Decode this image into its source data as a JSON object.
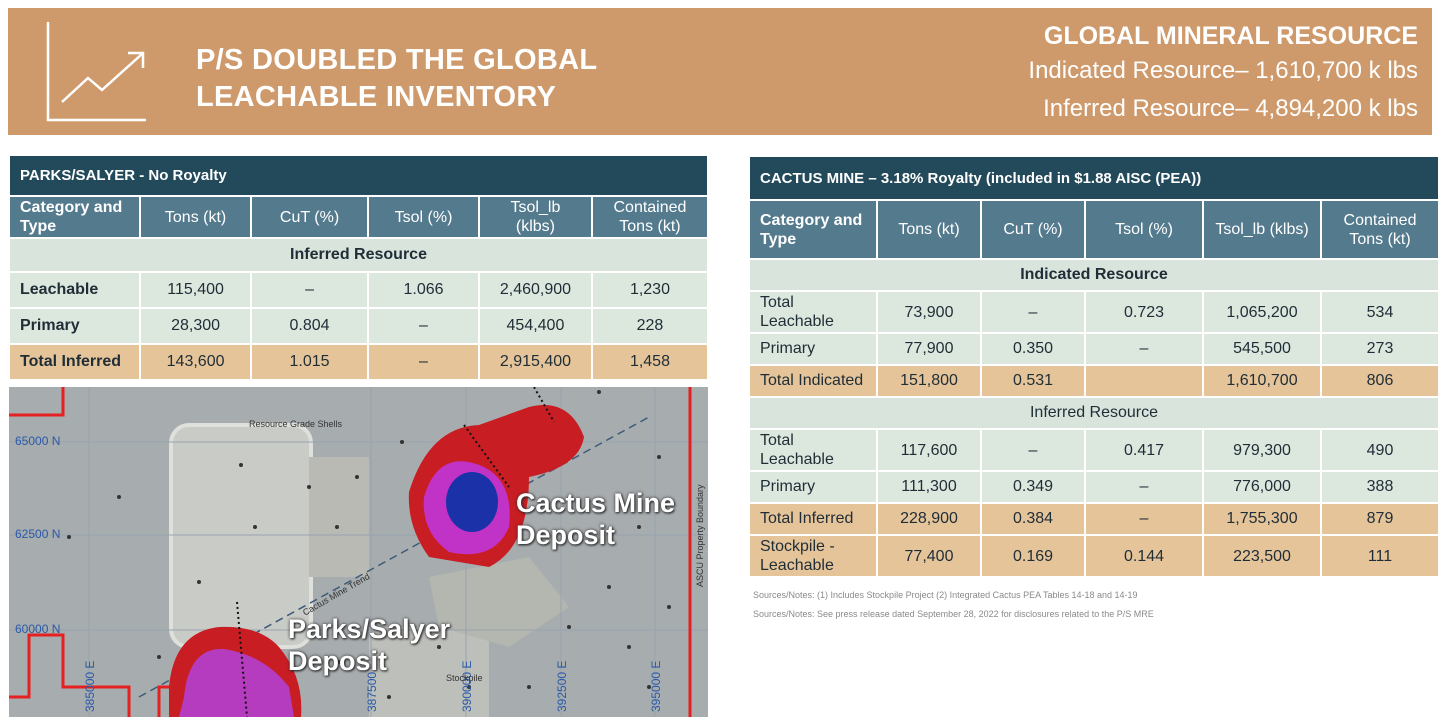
{
  "banner": {
    "title_line1": "P/S DOUBLED THE GLOBAL",
    "title_line2": "LEACHABLE INVENTORY",
    "gmr_title": "GLOBAL MINERAL RESOURCE",
    "indicated": "Indicated Resource– 1,610,700 k lbs",
    "inferred": "Inferred Resource– 4,894,200 k lbs",
    "icon": "chart-growth-icon"
  },
  "left_table": {
    "title": "PARKS/SALYER - No Royalty",
    "headers": [
      "Category and Type",
      "Tons (kt)",
      "CuT (%)",
      "Tsol (%)",
      "Tsol_lb (klbs)",
      "Contained Tons (kt)"
    ],
    "section": "Inferred Resource",
    "rows": [
      [
        "Leachable",
        "115,400",
        "–",
        "1.066",
        "2,460,900",
        "1,230"
      ],
      [
        "Primary",
        "28,300",
        "0.804",
        "–",
        "454,400",
        "228"
      ]
    ],
    "total": [
      "Total Inferred",
      "143,600",
      "1.015",
      "–",
      "2,915,400",
      "1,458"
    ]
  },
  "right_table": {
    "title": "CACTUS MINE – 3.18% Royalty (included in $1.88 AISC (PEA))",
    "headers": [
      "Category and Type",
      "Tons (kt)",
      "CuT (%)",
      "Tsol (%)",
      "Tsol_lb (klbs)",
      "Contained Tons (kt)"
    ],
    "indicated_section": "Indicated Resource",
    "indicated_rows": [
      [
        "Total Leachable",
        "73,900",
        "–",
        "0.723",
        "1,065,200",
        "534"
      ],
      [
        "Primary",
        "77,900",
        "0.350",
        "–",
        "545,500",
        "273"
      ]
    ],
    "indicated_total": [
      "Total Indicated",
      "151,800",
      "0.531",
      "",
      "1,610,700",
      "806"
    ],
    "inferred_section": "Inferred Resource",
    "inferred_rows": [
      [
        "Total Leachable",
        "117,600",
        "–",
        "0.417",
        "979,300",
        "490"
      ],
      [
        "Primary",
        "111,300",
        "0.349",
        "–",
        "776,000",
        "388"
      ]
    ],
    "inferred_total": [
      "Total Inferred",
      "228,900",
      "0.384",
      "–",
      "1,755,300",
      "879"
    ],
    "stockpile": [
      "Stockpile - Leachable",
      "77,400",
      "0.169",
      "0.144",
      "223,500",
      "111"
    ]
  },
  "notes": {
    "line1": "Sources/Notes: (1) Includes Stockpile Project (2) Integrated Cactus PEA  Tables 14-18 and 14-19",
    "line2": "Sources/Notes: See press release dated September 28, 2022 for disclosures related to the P/S MRE"
  },
  "map": {
    "cactus_label_1": "Cactus Mine",
    "cactus_label_2": "Deposit",
    "parks_label_1": "Parks/Salyer",
    "parks_label_2": "Deposit",
    "grade_shells": "Resource Grade Shells",
    "trend": "Cactus Mine Trend",
    "stockpile": "Stockpile",
    "boundary": "ASCU Property Boundary",
    "y_ticks": [
      "65000  N",
      "62500  N",
      "60000  N"
    ],
    "x_ticks": [
      "385000  E",
      "387500",
      "390000  E",
      "392500  E",
      "395000  E"
    ]
  }
}
